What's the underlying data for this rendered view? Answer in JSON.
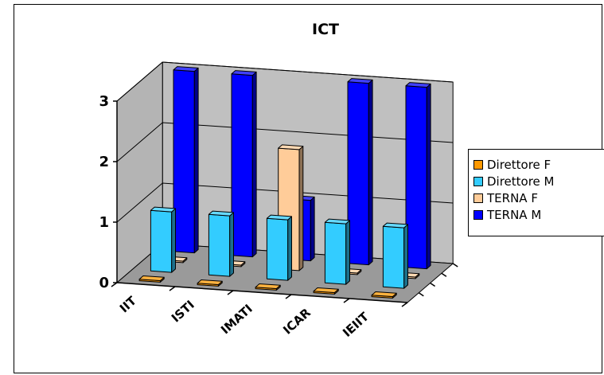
{
  "chart_data": {
    "type": "bar",
    "title": "ICT",
    "categories": [
      "IIT",
      "ISTI",
      "IMATI",
      "ICAR",
      "IEIIT"
    ],
    "series": [
      {
        "name": "Direttore F",
        "values": [
          0,
          0,
          0,
          0,
          0
        ],
        "color": "#FF9900"
      },
      {
        "name": "Direttore M",
        "values": [
          1,
          1,
          1,
          1,
          1
        ],
        "color": "#33CCFF"
      },
      {
        "name": "TERNA F",
        "values": [
          0,
          0,
          2,
          0,
          0
        ],
        "color": "#FFCC99"
      },
      {
        "name": "TERNA M",
        "values": [
          3,
          3,
          1,
          3,
          3
        ],
        "color": "#0000FF"
      }
    ],
    "yticks": [
      "0",
      "1",
      "2",
      "3"
    ],
    "ylim": [
      0,
      3
    ],
    "legend_position": "right",
    "grid": true
  }
}
